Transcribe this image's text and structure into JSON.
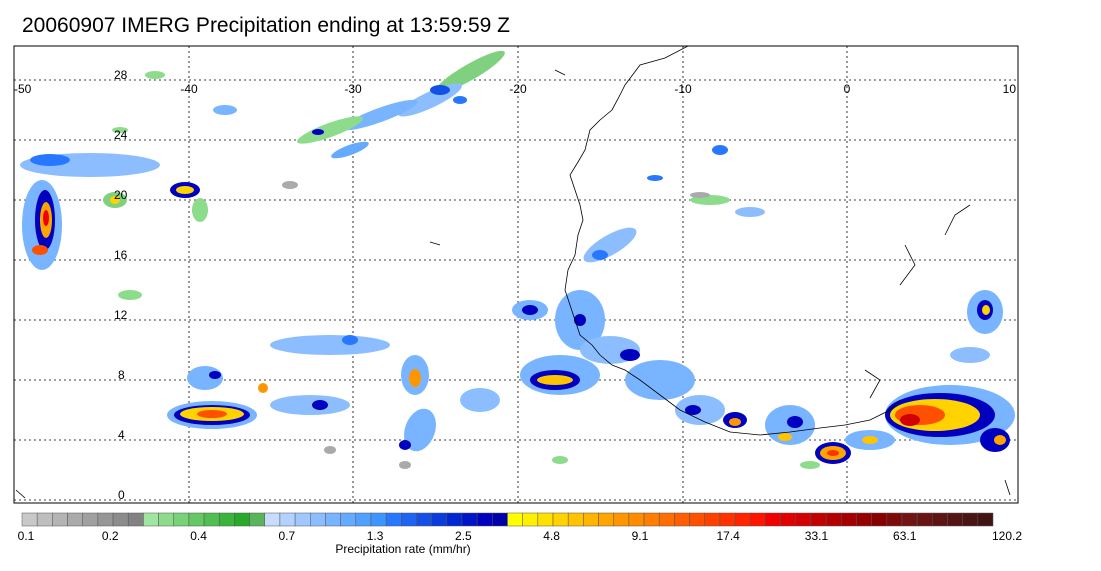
{
  "title": "20060907 IMERG Precipitation ending at 13:59:59 Z",
  "lon_labels": [
    "-50",
    "-40",
    "-30",
    "-20",
    "-10",
    "0",
    "10"
  ],
  "lat_labels": [
    "28",
    "24",
    "20",
    "16",
    "12",
    "8",
    "4",
    "0"
  ],
  "colorbar": {
    "label": "Precipitation rate (mm/hr)",
    "tick_labels": [
      "0.1",
      "0.2",
      "0.4",
      "0.7",
      "1.3",
      "2.5",
      "4.8",
      "9.1",
      "17.4",
      "33.1",
      "63.1",
      "120.2"
    ],
    "colors": [
      "#c8c8c8",
      "#bebebe",
      "#b4b4b4",
      "#aaaaaa",
      "#a0a0a0",
      "#969696",
      "#8c8c8c",
      "#828282",
      "#a0e6a0",
      "#8cdc8c",
      "#78d278",
      "#64c864",
      "#50be50",
      "#3cb43c",
      "#28aa28",
      "#5ab45a",
      "#c8dcff",
      "#b4d2ff",
      "#a0c8ff",
      "#8cbeff",
      "#78b4ff",
      "#64aaff",
      "#50a0ff",
      "#3c96ff",
      "#2878ff",
      "#1e64f0",
      "#1450e6",
      "#0a3cdc",
      "#0028d2",
      "#0014c8",
      "#0000be",
      "#0000aa",
      "#ffff00",
      "#fff000",
      "#ffe100",
      "#ffd200",
      "#ffc300",
      "#ffb400",
      "#ffa500",
      "#ff9600",
      "#ff8c00",
      "#ff7d00",
      "#ff6e00",
      "#ff5f00",
      "#ff5000",
      "#ff4100",
      "#ff3200",
      "#ff2300",
      "#ff1400",
      "#f00000",
      "#e10000",
      "#d20000",
      "#c30000",
      "#b40000",
      "#a50000",
      "#960000",
      "#870000",
      "#7d0a0a",
      "#731414",
      "#691414",
      "#5f1414",
      "#551414",
      "#4b1414",
      "#411414"
    ]
  }
}
